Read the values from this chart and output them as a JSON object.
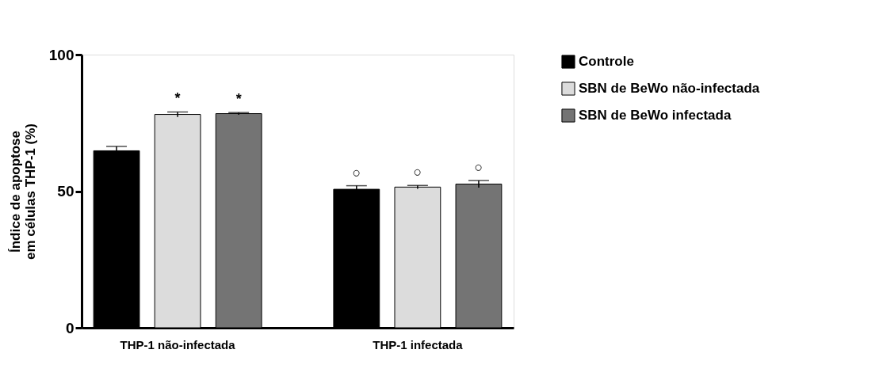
{
  "chart_data": {
    "type": "bar",
    "ylabel": "Índice de apoptose\nem células THP-1 (%)",
    "categories": [
      "THP-1 não-infectada",
      "THP-1 infectada"
    ],
    "series": [
      {
        "name": "Controle",
        "color": "#000000",
        "values": [
          64.8,
          50.7
        ],
        "errors": [
          1.6,
          1.3
        ]
      },
      {
        "name": "SBN de BeWo não-infectada",
        "color": "#dcdcdc",
        "values": [
          78.1,
          51.5
        ],
        "errors": [
          0.9,
          0.6
        ]
      },
      {
        "name": "SBN de BeWo infectada",
        "color": "#747474",
        "values": [
          78.4,
          52.6
        ],
        "errors": [
          0.4,
          1.3
        ]
      }
    ],
    "ylim": [
      0,
      100
    ],
    "yticks": [
      0,
      50,
      100
    ],
    "grid": false,
    "legend": "top right",
    "annotations": [
      "*",
      "*",
      "○",
      "○",
      "○"
    ]
  }
}
